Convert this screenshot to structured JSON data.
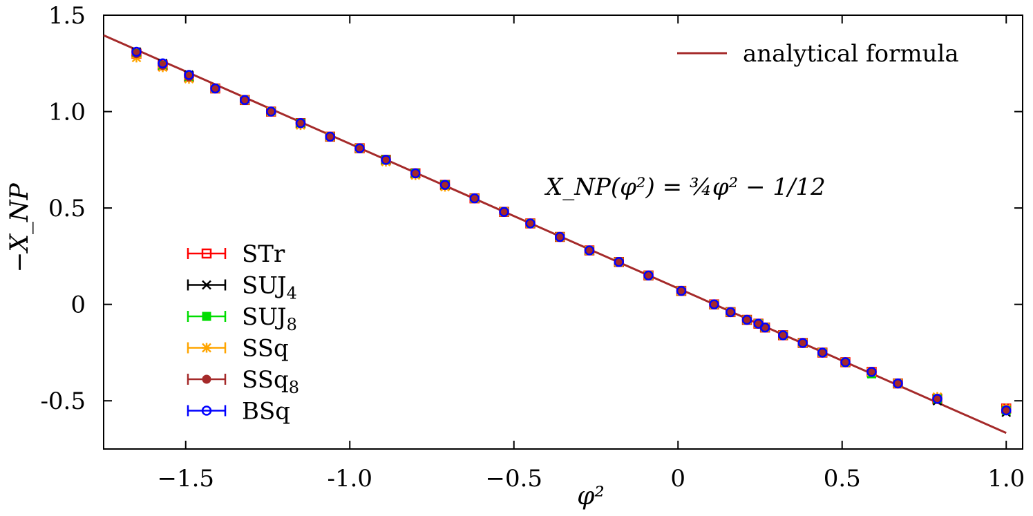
{
  "chart_data": {
    "type": "scatter",
    "xlabel": "φ²",
    "ylabel": "−X_NP",
    "xlim": [
      -1.75,
      1.05
    ],
    "ylim": [
      -0.75,
      1.5
    ],
    "x_ticks": [
      {
        "value": -1.5,
        "label": "−1.5"
      },
      {
        "value": -1.0,
        "label": "-1.0"
      },
      {
        "value": -0.5,
        "label": "−0.5"
      },
      {
        "value": 0,
        "label": "0"
      },
      {
        "value": 0.5,
        "label": "0.5"
      },
      {
        "value": 1.0,
        "label": "1.0"
      }
    ],
    "y_ticks": [
      {
        "value": 1.5,
        "label": "1.5"
      },
      {
        "value": 1.0,
        "label": "1.0"
      },
      {
        "value": 0.5,
        "label": "0.5"
      },
      {
        "value": 0,
        "label": "0"
      },
      {
        "value": -0.5,
        "label": "-0.5"
      }
    ],
    "grid": false,
    "legend_top_right": "top-right",
    "legend_bottom_left": "bottom-left",
    "annotation": "X_NP(φ²) = ¾φ² − 1/12",
    "line": {
      "name": "analytical formula",
      "color": "#a52a2a",
      "slope": -0.75,
      "intercept": 0.0833,
      "x_range": [
        -1.75,
        1.0
      ]
    },
    "x": [
      -1.65,
      -1.57,
      -1.49,
      -1.41,
      -1.32,
      -1.24,
      -1.15,
      -1.06,
      -0.97,
      -0.89,
      -0.8,
      -0.71,
      -0.62,
      -0.53,
      -0.45,
      -0.36,
      -0.27,
      -0.18,
      -0.09,
      0.01,
      0.11,
      0.16,
      0.21,
      0.245,
      0.265,
      0.32,
      0.38,
      0.44,
      0.51,
      0.59,
      0.67,
      0.79,
      1.0
    ],
    "series": [
      {
        "name": "STr",
        "marker": "open-square",
        "color": "#ff0000",
        "y": [
          1.3,
          1.24,
          1.18,
          1.12,
          1.06,
          1.0,
          0.94,
          0.87,
          0.81,
          0.75,
          0.68,
          0.62,
          0.55,
          0.48,
          0.42,
          0.35,
          0.28,
          0.22,
          0.15,
          0.07,
          0.0,
          -0.04,
          -0.08,
          -0.1,
          -0.12,
          -0.16,
          -0.2,
          -0.25,
          -0.3,
          -0.35,
          -0.41,
          -0.49,
          -0.54
        ]
      },
      {
        "name": "SUJ",
        "subscript": "4",
        "marker": "cross",
        "color": "#000000",
        "y": [
          1.31,
          1.25,
          1.19,
          1.12,
          1.06,
          1.0,
          0.94,
          0.87,
          0.81,
          0.75,
          0.68,
          0.62,
          0.55,
          0.48,
          0.42,
          0.35,
          0.28,
          0.22,
          0.15,
          0.07,
          0.0,
          -0.04,
          -0.08,
          -0.1,
          -0.12,
          -0.16,
          -0.2,
          -0.25,
          -0.3,
          -0.36,
          -0.41,
          -0.5,
          -0.56
        ]
      },
      {
        "name": "SUJ",
        "subscript": "8",
        "marker": "filled-square",
        "color": "#00dd00",
        "y": [
          1.3,
          1.24,
          1.18,
          1.12,
          1.06,
          1.0,
          0.94,
          0.87,
          0.81,
          0.75,
          0.68,
          0.62,
          0.55,
          0.48,
          0.42,
          0.35,
          0.28,
          0.22,
          0.15,
          0.07,
          0.0,
          -0.04,
          -0.08,
          -0.1,
          -0.12,
          -0.16,
          -0.2,
          -0.25,
          -0.3,
          -0.36,
          -0.41,
          -0.49,
          -0.55
        ]
      },
      {
        "name": "SSq",
        "marker": "star",
        "color": "#ffa500",
        "y": [
          1.28,
          1.23,
          1.17,
          1.12,
          1.06,
          1.0,
          0.93,
          0.87,
          0.81,
          0.74,
          0.67,
          0.61,
          0.55,
          0.48,
          0.42,
          0.35,
          0.28,
          0.22,
          0.15,
          0.07,
          0.0,
          -0.04,
          -0.08,
          -0.1,
          -0.12,
          -0.16,
          -0.2,
          -0.25,
          -0.3,
          -0.35,
          -0.41,
          -0.48,
          -0.54
        ]
      },
      {
        "name": "SSq",
        "subscript": "8",
        "marker": "filled-circle",
        "color": "#a52a2a",
        "y": [
          1.3,
          1.24,
          1.18,
          1.12,
          1.06,
          1.0,
          0.94,
          0.87,
          0.81,
          0.75,
          0.68,
          0.62,
          0.55,
          0.48,
          0.42,
          0.35,
          0.28,
          0.22,
          0.15,
          0.07,
          0.0,
          -0.04,
          -0.08,
          -0.1,
          -0.12,
          -0.16,
          -0.2,
          -0.25,
          -0.3,
          -0.35,
          -0.41,
          -0.49,
          -0.55
        ]
      },
      {
        "name": "BSq",
        "marker": "open-circle",
        "color": "#0000ff",
        "y": [
          1.31,
          1.25,
          1.19,
          1.12,
          1.06,
          1.0,
          0.94,
          0.87,
          0.81,
          0.75,
          0.68,
          0.62,
          0.55,
          0.48,
          0.42,
          0.35,
          0.28,
          0.22,
          0.15,
          0.07,
          0.0,
          -0.04,
          -0.08,
          -0.1,
          -0.12,
          -0.16,
          -0.2,
          -0.25,
          -0.3,
          -0.35,
          -0.41,
          -0.49,
          -0.55
        ]
      }
    ]
  }
}
